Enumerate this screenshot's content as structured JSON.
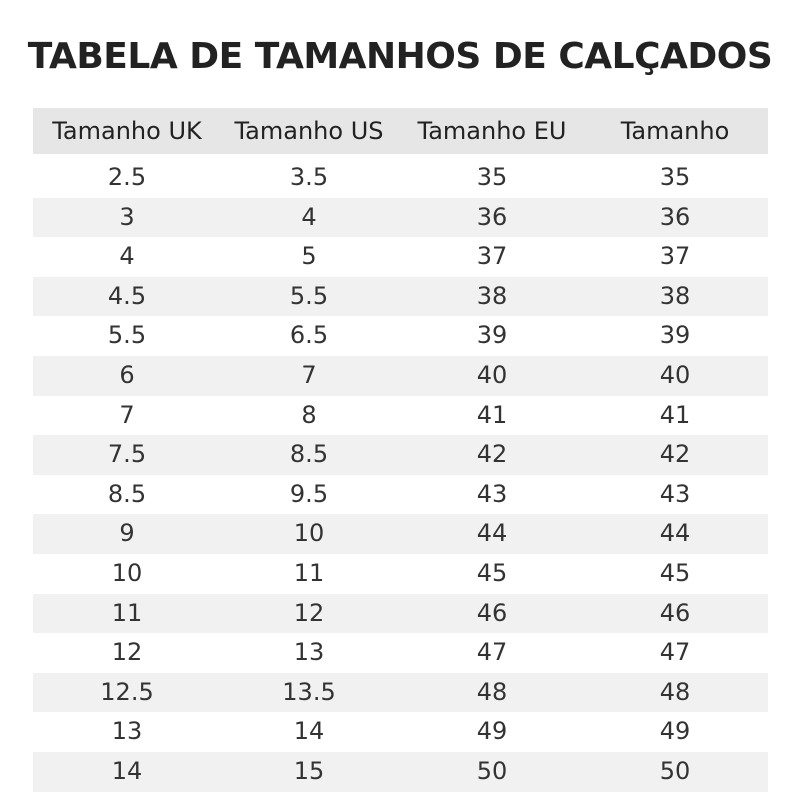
{
  "title": "TABELA DE TAMANHOS DE CALÇADOS",
  "table": {
    "header": [
      "Tamanho UK",
      "Tamanho US",
      "Tamanho EU",
      "Tamanho"
    ],
    "rows": [
      [
        "2.5",
        "3.5",
        "35",
        "35"
      ],
      [
        "3",
        "4",
        "36",
        "36"
      ],
      [
        "4",
        "5",
        "37",
        "37"
      ],
      [
        "4.5",
        "5.5",
        "38",
        "38"
      ],
      [
        "5.5",
        "6.5",
        "39",
        "39"
      ],
      [
        "6",
        "7",
        "40",
        "40"
      ],
      [
        "7",
        "8",
        "41",
        "41"
      ],
      [
        "7.5",
        "8.5",
        "42",
        "42"
      ],
      [
        "8.5",
        "9.5",
        "43",
        "43"
      ],
      [
        "9",
        "10",
        "44",
        "44"
      ],
      [
        "10",
        "11",
        "45",
        "45"
      ],
      [
        "11",
        "12",
        "46",
        "46"
      ],
      [
        "12",
        "13",
        "47",
        "47"
      ],
      [
        "12.5",
        "13.5",
        "48",
        "48"
      ],
      [
        "13",
        "14",
        "49",
        "49"
      ],
      [
        "14",
        "15",
        "50",
        "50"
      ]
    ]
  }
}
